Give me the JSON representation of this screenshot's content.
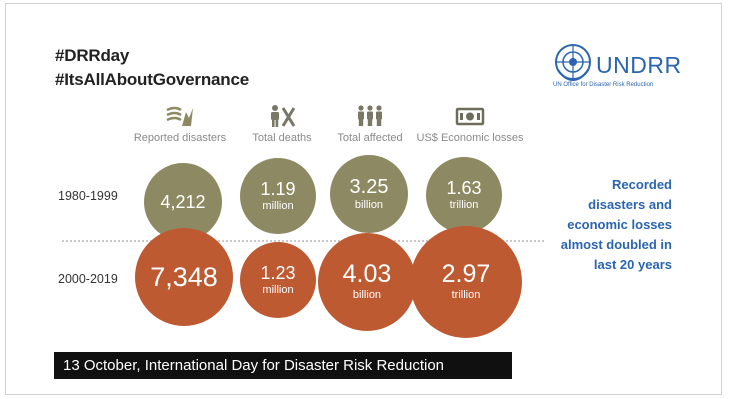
{
  "hashtags": [
    "#DRRday",
    "#ItsAllAboutGovernance"
  ],
  "logo": {
    "wordmark": "UNDRR",
    "subtitle": "UN Office for Disaster Risk Reduction"
  },
  "columns": [
    {
      "label": "Reported disasters",
      "icon": "disaster-icon"
    },
    {
      "label": "Total deaths",
      "icon": "deaths-icon"
    },
    {
      "label": "Total affected",
      "icon": "affected-people-icon"
    },
    {
      "label": "US$ Economic losses",
      "icon": "money-icon"
    }
  ],
  "rows": [
    {
      "period": "1980-1999",
      "values": [
        {
          "value": "4,212",
          "unit": ""
        },
        {
          "value": "1.19",
          "unit": "million"
        },
        {
          "value": "3.25",
          "unit": "billion"
        },
        {
          "value": "1.63",
          "unit": "trillion"
        }
      ]
    },
    {
      "period": "2000-2019",
      "values": [
        {
          "value": "7,348",
          "unit": ""
        },
        {
          "value": "1.23",
          "unit": "million"
        },
        {
          "value": "4.03",
          "unit": "billion"
        },
        {
          "value": "2.97",
          "unit": "trillion"
        }
      ]
    }
  ],
  "side_text": [
    "Recorded",
    "disasters and",
    "economic losses",
    "almost doubled in",
    "last 20 years"
  ],
  "banner": "13 October, International Day for Disaster Risk Reduction",
  "colors": {
    "olive": "#8d8a63",
    "rust": "#bd5a32",
    "brand_blue": "#2b65b0",
    "banner_bg": "#101010"
  }
}
